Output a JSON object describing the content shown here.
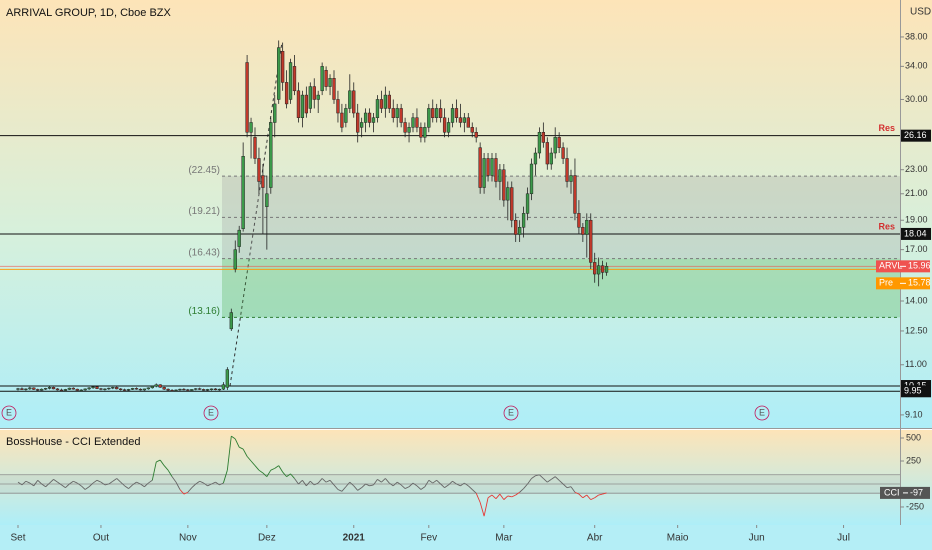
{
  "chart_data": {
    "type": "candlestick",
    "title": "ARRIVAL GROUP, 1D, Cboe BZX",
    "currency": "USD",
    "log_scale": true,
    "ylim": [
      8.66,
      43.7
    ],
    "yticks": [
      {
        "value": 9.1,
        "label": "9.10"
      },
      {
        "value": 11,
        "label": "11.00"
      },
      {
        "value": 12.5,
        "label": "12.50"
      },
      {
        "value": 14,
        "label": "14.00"
      },
      {
        "value": 17,
        "label": "17.00"
      },
      {
        "value": 19,
        "label": "19.00"
      },
      {
        "value": 21,
        "label": "21.00"
      },
      {
        "value": 23,
        "label": "23.00"
      },
      {
        "value": 30,
        "label": "30.00"
      },
      {
        "value": 34,
        "label": "34.00"
      },
      {
        "value": 38,
        "label": "38.00"
      }
    ],
    "xticks": [
      {
        "value": 0,
        "label": "Set"
      },
      {
        "value": 21,
        "label": "Out"
      },
      {
        "value": 43,
        "label": "Nov"
      },
      {
        "value": 63,
        "label": "Dez"
      },
      {
        "value": 85,
        "label": "2021"
      },
      {
        "value": 104,
        "label": "Fev"
      },
      {
        "value": 123,
        "label": "Mar"
      },
      {
        "value": 146,
        "label": "Abr"
      },
      {
        "value": 167,
        "label": "Maio"
      },
      {
        "value": 187,
        "label": "Jun"
      },
      {
        "value": 209,
        "label": "Jul"
      }
    ],
    "up_color": "#3c9a4a",
    "down_color": "#c0392b",
    "candles": [
      [
        10.02,
        10.08,
        9.98,
        10.05
      ],
      [
        10.05,
        10.1,
        10.0,
        10.01
      ],
      [
        10.01,
        10.06,
        9.97,
        10.04
      ],
      [
        10.04,
        10.12,
        10.0,
        10.08
      ],
      [
        10.08,
        10.1,
        10.0,
        10.02
      ],
      [
        10.02,
        10.05,
        9.96,
        9.99
      ],
      [
        9.99,
        10.06,
        9.97,
        10.03
      ],
      [
        10.03,
        10.08,
        10.0,
        10.06
      ],
      [
        10.06,
        10.14,
        10.02,
        10.1
      ],
      [
        10.1,
        10.12,
        10.02,
        10.04
      ],
      [
        10.04,
        10.07,
        9.98,
        10.0
      ],
      [
        10.0,
        10.05,
        9.95,
        9.98
      ],
      [
        9.98,
        10.04,
        9.95,
        10.02
      ],
      [
        10.02,
        10.09,
        10.0,
        10.07
      ],
      [
        10.07,
        10.1,
        10.01,
        10.03
      ],
      [
        10.03,
        10.05,
        9.96,
        9.98
      ],
      [
        9.98,
        10.03,
        9.94,
        10.0
      ],
      [
        10.0,
        10.06,
        9.97,
        10.04
      ],
      [
        10.04,
        10.11,
        10.0,
        10.08
      ],
      [
        10.08,
        10.15,
        10.04,
        10.12
      ],
      [
        10.12,
        10.14,
        10.03,
        10.05
      ],
      [
        10.05,
        10.08,
        9.99,
        10.02
      ],
      [
        10.02,
        10.06,
        9.98,
        10.04
      ],
      [
        10.04,
        10.09,
        10.0,
        10.07
      ],
      [
        10.07,
        10.12,
        10.03,
        10.1
      ],
      [
        10.1,
        10.13,
        10.02,
        10.04
      ],
      [
        10.04,
        10.07,
        9.98,
        10.01
      ],
      [
        10.01,
        10.05,
        9.96,
        9.99
      ],
      [
        9.99,
        10.04,
        9.96,
        10.02
      ],
      [
        10.02,
        10.08,
        10.0,
        10.06
      ],
      [
        10.06,
        10.1,
        10.01,
        10.03
      ],
      [
        10.03,
        10.06,
        9.98,
        10.0
      ],
      [
        10.0,
        10.05,
        9.97,
        10.04
      ],
      [
        10.04,
        10.1,
        10.01,
        10.08
      ],
      [
        10.08,
        10.16,
        10.05,
        10.14
      ],
      [
        10.14,
        10.25,
        10.1,
        10.2
      ],
      [
        10.2,
        10.22,
        10.08,
        10.1
      ],
      [
        10.1,
        10.12,
        10.0,
        10.03
      ],
      [
        10.03,
        10.06,
        9.96,
        9.99
      ],
      [
        9.99,
        10.03,
        9.94,
        9.97
      ],
      [
        9.97,
        10.02,
        9.94,
        10.0
      ],
      [
        10.0,
        10.05,
        9.97,
        10.03
      ],
      [
        10.03,
        10.07,
        9.99,
        10.01
      ],
      [
        10.01,
        10.04,
        9.96,
        9.98
      ],
      [
        9.98,
        10.03,
        9.95,
        10.02
      ],
      [
        10.02,
        10.07,
        9.99,
        10.05
      ],
      [
        10.05,
        10.09,
        10.0,
        10.02
      ],
      [
        10.02,
        10.05,
        9.97,
        10.0
      ],
      [
        10.0,
        10.04,
        9.96,
        10.02
      ],
      [
        10.02,
        10.06,
        9.98,
        10.04
      ],
      [
        10.04,
        10.07,
        9.99,
        10.01
      ],
      [
        10.01,
        10.05,
        9.97,
        10.03
      ],
      [
        10.03,
        10.3,
        10.0,
        10.2
      ],
      [
        10.1,
        10.9,
        10.0,
        10.8
      ],
      [
        12.6,
        13.6,
        12.5,
        13.4
      ],
      [
        15.8,
        17.6,
        15.6,
        17.0
      ],
      [
        17.2,
        18.6,
        16.8,
        18.3
      ],
      [
        18.4,
        25.5,
        18.2,
        24.2
      ],
      [
        34.5,
        35.5,
        26.0,
        26.5
      ],
      [
        26.5,
        28.0,
        24.0,
        27.5
      ],
      [
        26.0,
        27.0,
        23.5,
        24.0
      ],
      [
        24.0,
        25.0,
        21.0,
        22.0
      ],
      [
        22.5,
        23.5,
        18.0,
        21.5
      ],
      [
        20.0,
        22.5,
        17.0,
        21.0
      ],
      [
        21.5,
        28.0,
        21.0,
        27.5
      ],
      [
        27.5,
        30.5,
        26.0,
        29.5
      ],
      [
        30.0,
        37.5,
        29.5,
        36.5
      ],
      [
        36.0,
        37.2,
        31.0,
        32.0
      ],
      [
        32.0,
        33.5,
        29.0,
        29.5
      ],
      [
        30.0,
        35.0,
        29.5,
        34.5
      ],
      [
        34.0,
        35.5,
        30.5,
        31.0
      ],
      [
        31.0,
        32.0,
        27.5,
        28.0
      ],
      [
        28.0,
        31.0,
        27.0,
        30.5
      ],
      [
        30.5,
        31.5,
        28.0,
        28.5
      ],
      [
        29.0,
        32.0,
        28.5,
        31.5
      ],
      [
        31.5,
        32.5,
        29.0,
        30.0
      ],
      [
        30.0,
        31.0,
        28.5,
        30.5
      ],
      [
        31.0,
        34.5,
        30.5,
        34.0
      ],
      [
        33.5,
        34.0,
        31.0,
        31.5
      ],
      [
        31.5,
        33.0,
        30.5,
        32.5
      ],
      [
        32.5,
        33.5,
        29.5,
        30.0
      ],
      [
        30.0,
        31.0,
        27.5,
        28.5
      ],
      [
        28.5,
        29.5,
        26.5,
        27.0
      ],
      [
        27.5,
        29.5,
        27.0,
        29.0
      ],
      [
        29.0,
        33.0,
        28.5,
        31.0
      ],
      [
        31.0,
        32.0,
        28.0,
        28.5
      ],
      [
        28.5,
        29.5,
        25.5,
        26.5
      ],
      [
        27.0,
        28.0,
        26.0,
        27.5
      ],
      [
        27.5,
        29.0,
        26.5,
        28.5
      ],
      [
        28.5,
        29.0,
        27.0,
        27.5
      ],
      [
        27.5,
        28.5,
        26.5,
        28.0
      ],
      [
        28.0,
        30.5,
        27.5,
        30.0
      ],
      [
        30.0,
        31.0,
        28.5,
        29.0
      ],
      [
        29.0,
        31.5,
        28.0,
        30.5
      ],
      [
        30.5,
        31.0,
        28.5,
        29.0
      ],
      [
        29.0,
        30.0,
        27.5,
        28.0
      ],
      [
        28.0,
        29.5,
        27.0,
        29.0
      ],
      [
        29.0,
        29.5,
        27.0,
        27.5
      ],
      [
        27.5,
        28.0,
        26.0,
        26.5
      ],
      [
        26.5,
        27.5,
        25.5,
        27.0
      ],
      [
        27.0,
        28.5,
        26.5,
        28.0
      ],
      [
        28.0,
        29.0,
        26.5,
        27.0
      ],
      [
        27.0,
        27.5,
        25.5,
        26.0
      ],
      [
        26.0,
        27.5,
        25.5,
        27.0
      ],
      [
        27.0,
        29.5,
        26.5,
        29.0
      ],
      [
        29.0,
        30.0,
        27.5,
        28.0
      ],
      [
        28.0,
        29.5,
        27.5,
        29.0
      ],
      [
        29.0,
        30.0,
        27.5,
        28.0
      ],
      [
        28.0,
        29.0,
        26.0,
        26.5
      ],
      [
        26.5,
        28.0,
        26.0,
        27.5
      ],
      [
        27.5,
        29.5,
        27.0,
        29.0
      ],
      [
        29.0,
        30.0,
        27.5,
        28.0
      ],
      [
        28.0,
        29.5,
        27.0,
        27.5
      ],
      [
        27.5,
        28.5,
        26.5,
        28.0
      ],
      [
        28.0,
        28.5,
        27.0,
        27.0
      ],
      [
        27.0,
        27.5,
        26.0,
        26.5
      ],
      [
        26.5,
        27.0,
        25.5,
        26.0
      ],
      [
        25.0,
        25.5,
        21.0,
        21.5
      ],
      [
        21.5,
        24.5,
        21.0,
        24.0
      ],
      [
        24.0,
        24.5,
        22.0,
        22.5
      ],
      [
        22.5,
        24.5,
        22.0,
        24.0
      ],
      [
        24.0,
        24.5,
        21.5,
        22.0
      ],
      [
        22.0,
        23.5,
        20.5,
        23.0
      ],
      [
        23.0,
        23.5,
        20.0,
        20.5
      ],
      [
        20.5,
        22.0,
        19.0,
        21.5
      ],
      [
        21.5,
        22.0,
        18.5,
        19.0
      ],
      [
        19.0,
        19.5,
        17.5,
        18.0
      ],
      [
        18.0,
        19.0,
        17.5,
        18.5
      ],
      [
        18.5,
        20.0,
        17.8,
        19.5
      ],
      [
        19.5,
        21.5,
        19.0,
        21.0
      ],
      [
        21.0,
        24.0,
        20.5,
        23.5
      ],
      [
        23.5,
        25.0,
        22.5,
        24.5
      ],
      [
        24.5,
        27.0,
        24.0,
        26.5
      ],
      [
        26.5,
        27.5,
        25.0,
        25.5
      ],
      [
        25.5,
        26.0,
        23.0,
        23.5
      ],
      [
        23.5,
        25.0,
        23.0,
        24.5
      ],
      [
        24.5,
        27.0,
        24.0,
        26.0
      ],
      [
        26.0,
        26.5,
        24.5,
        25.0
      ],
      [
        25.0,
        25.5,
        23.5,
        24.0
      ],
      [
        24.0,
        25.0,
        21.5,
        22.0
      ],
      [
        22.0,
        23.0,
        21.0,
        22.5
      ],
      [
        22.5,
        24.0,
        19.0,
        19.5
      ],
      [
        19.5,
        20.5,
        18.0,
        18.5
      ],
      [
        18.5,
        18.8,
        17.5,
        18.0
      ],
      [
        18.0,
        19.5,
        16.5,
        19.0
      ],
      [
        19.0,
        19.5,
        15.8,
        16.2
      ],
      [
        16.2,
        16.8,
        15.0,
        15.5
      ],
      [
        15.5,
        16.5,
        14.8,
        16.0
      ],
      [
        16.0,
        16.3,
        15.2,
        15.6
      ],
      [
        15.6,
        16.2,
        15.4,
        15.96
      ]
    ],
    "levels": [
      {
        "value": 26.16,
        "label": "Res"
      },
      {
        "value": 18.04,
        "label": "Res"
      },
      {
        "value": 10.15
      },
      {
        "value": 9.95
      }
    ],
    "fib_levels": [
      {
        "value": 22.45,
        "label": "(22.45)"
      },
      {
        "value": 19.21,
        "label": "(19.21)"
      },
      {
        "value": 16.43,
        "label": "(16.43)"
      },
      {
        "value": 13.16,
        "label": "(13.16)"
      }
    ],
    "last": {
      "name": "ARVL",
      "value": 15.96,
      "color": "#ef5350"
    },
    "pre": {
      "name": "Pre",
      "value": 15.78,
      "color": "#ff9800"
    },
    "events": [
      "E",
      "E",
      "E",
      "E"
    ],
    "cci": {
      "title": "BossHouse - CCI Extended",
      "name": "CCI",
      "ylim": [
        -446,
        587
      ],
      "yticks": [
        500,
        250,
        -250
      ],
      "bands": [
        100,
        0,
        -100
      ],
      "values": [
        20,
        -10,
        30,
        10,
        -20,
        40,
        0,
        -30,
        10,
        50,
        20,
        -10,
        -40,
        0,
        30,
        10,
        -20,
        -60,
        -30,
        10,
        40,
        20,
        -10,
        0,
        30,
        60,
        20,
        -20,
        -50,
        -10,
        20,
        0,
        -30,
        10,
        40,
        240,
        260,
        200,
        150,
        80,
        20,
        -60,
        -110,
        -90,
        -40,
        0,
        30,
        10,
        -20,
        0,
        20,
        -10,
        10,
        150,
        520,
        490,
        400,
        380,
        300,
        250,
        200,
        150,
        120,
        80,
        150,
        170,
        200,
        130,
        80,
        110,
        60,
        0,
        40,
        -20,
        30,
        -10,
        10,
        60,
        20,
        40,
        -10,
        -60,
        -80,
        -30,
        20,
        -20,
        -70,
        -40,
        0,
        -20,
        -10,
        50,
        20,
        60,
        10,
        -20,
        20,
        -10,
        -50,
        -30,
        10,
        -20,
        -60,
        -30,
        40,
        10,
        40,
        0,
        -40,
        -10,
        30,
        0,
        -20,
        10,
        -20,
        -60,
        -100,
        -200,
        -350,
        -150,
        -120,
        -160,
        -110,
        -170,
        -130,
        -140,
        -120,
        -90,
        -50,
        0,
        60,
        90,
        100,
        60,
        20,
        50,
        80,
        40,
        0,
        -40,
        -30,
        -90,
        -110,
        -150,
        -120,
        -170,
        -150,
        -120,
        -110,
        -97
      ]
    }
  }
}
